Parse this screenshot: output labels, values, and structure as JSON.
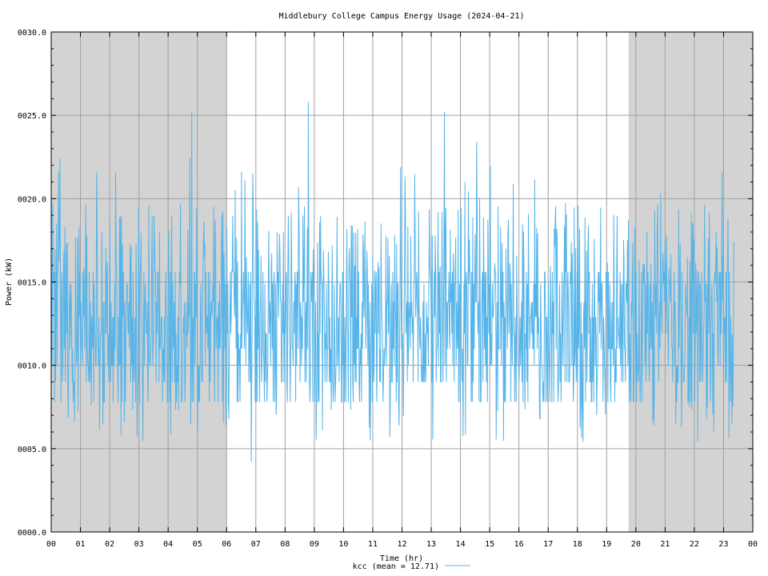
{
  "chart_data": {
    "type": "line",
    "title": "Middlebury College Campus Energy Usage (2024-04-21)",
    "xlabel": "Time (hr)",
    "ylabel": "Power (kW)",
    "xlim": [
      0,
      24
    ],
    "ylim": [
      0,
      30
    ],
    "x_ticks": [
      "00",
      "01",
      "02",
      "03",
      "04",
      "05",
      "06",
      "07",
      "08",
      "09",
      "10",
      "11",
      "12",
      "13",
      "14",
      "15",
      "16",
      "17",
      "18",
      "19",
      "20",
      "21",
      "22",
      "23",
      "00"
    ],
    "y_ticks": [
      "0000.0",
      "0005.0",
      "0010.0",
      "0015.0",
      "0020.0",
      "0025.0",
      "0030.0"
    ],
    "y_tick_values": [
      0,
      5,
      10,
      15,
      20,
      25,
      30
    ],
    "grid": true,
    "night_shading": [
      [
        0,
        6.0
      ],
      [
        19.75,
        24
      ]
    ],
    "legend_position": "bottom-center",
    "series": [
      {
        "name": "kcc",
        "legend_label": "kcc (mean = 12.71)",
        "color": "#56b4e9",
        "approx_samples": 1400,
        "baseline_levels_kW": [
          7.8,
          9.0,
          10.0,
          11.0,
          11.9,
          12.9,
          13.8,
          14.9,
          15.6
        ],
        "notable_points": [
          {
            "x": 0.25,
            "y": 21.6
          },
          {
            "x": 1.55,
            "y": 21.6
          },
          {
            "x": 2.2,
            "y": 21.6
          },
          {
            "x": 4.8,
            "y": 25.2
          },
          {
            "x": 6.85,
            "y": 4.2
          },
          {
            "x": 8.8,
            "y": 25.8
          },
          {
            "x": 13.45,
            "y": 25.2
          },
          {
            "x": 14.55,
            "y": 23.4
          },
          {
            "x": 18.2,
            "y": 5.4
          },
          {
            "x": 22.95,
            "y": 21.6
          },
          {
            "x": 23.35,
            "y": 17.4
          }
        ]
      }
    ]
  }
}
